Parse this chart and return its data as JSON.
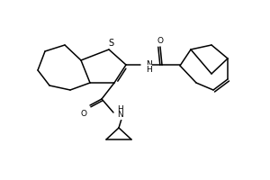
{
  "bg_color": "#ffffff",
  "line_color": "#000000",
  "line_width": 1.1,
  "font_size": 6.5,
  "S_label": "S",
  "NH_label": "NH",
  "H_label": "H",
  "O_label": "O",
  "N_label": "N"
}
